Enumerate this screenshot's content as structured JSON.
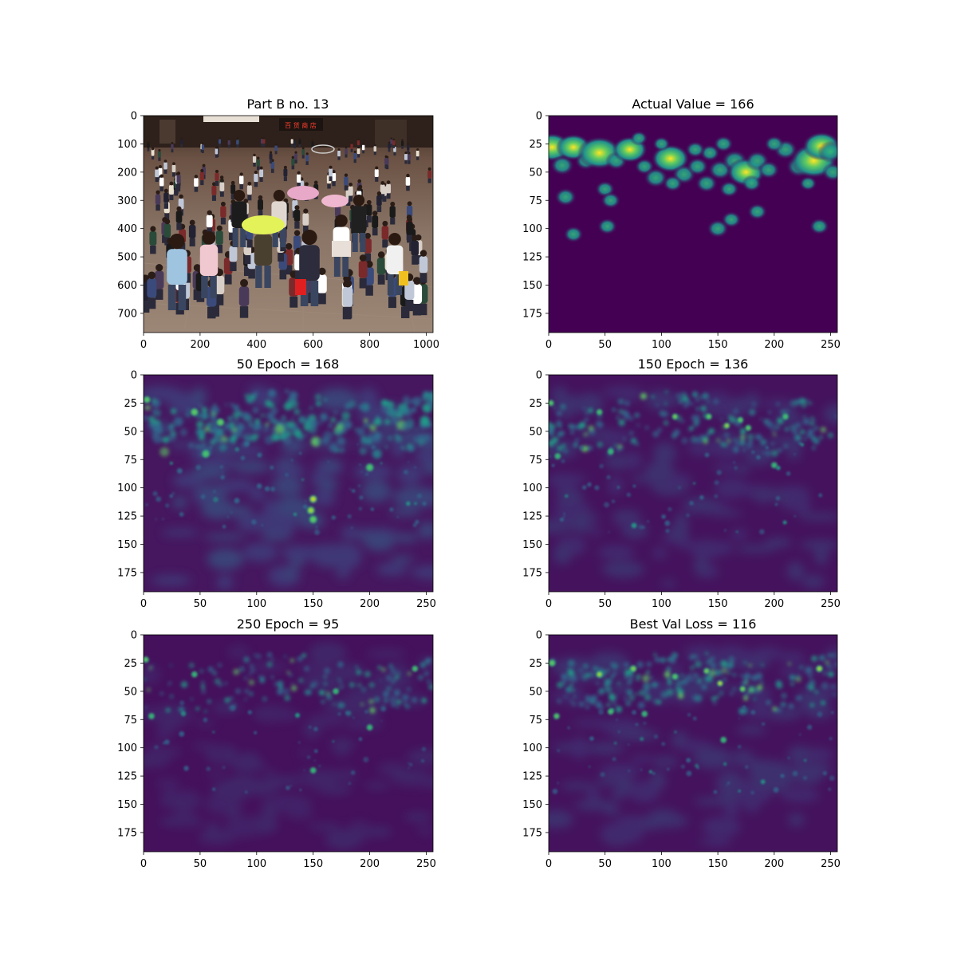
{
  "chart_data": [
    {
      "type": "heatmap",
      "title": "Part B no. 13",
      "content": "photo",
      "xlim": [
        0,
        1024
      ],
      "ylim": [
        768,
        0
      ],
      "xticks": [
        0,
        200,
        400,
        600,
        800,
        1000
      ],
      "yticks": [
        0,
        100,
        200,
        300,
        400,
        500,
        600,
        700
      ],
      "sign_text": "百 货 商 店"
    },
    {
      "type": "heatmap",
      "title": "Actual Value = 166",
      "content": "ground_truth_density",
      "colormap": "viridis",
      "xlim": [
        0,
        256
      ],
      "ylim": [
        192,
        0
      ],
      "xticks": [
        0,
        50,
        100,
        150,
        200,
        250
      ],
      "yticks": [
        0,
        25,
        50,
        75,
        100,
        125,
        150,
        175
      ]
    },
    {
      "type": "heatmap",
      "title": "50 Epoch = 168",
      "content": "predicted_density",
      "colormap": "viridis",
      "xlim": [
        0,
        256
      ],
      "ylim": [
        192,
        0
      ],
      "xticks": [
        0,
        50,
        100,
        150,
        200,
        250
      ],
      "yticks": [
        0,
        25,
        50,
        75,
        100,
        125,
        150,
        175
      ]
    },
    {
      "type": "heatmap",
      "title": "150 Epoch = 136",
      "content": "predicted_density",
      "colormap": "viridis",
      "xlim": [
        0,
        256
      ],
      "ylim": [
        192,
        0
      ],
      "xticks": [
        0,
        50,
        100,
        150,
        200,
        250
      ],
      "yticks": [
        0,
        25,
        50,
        75,
        100,
        125,
        150,
        175
      ]
    },
    {
      "type": "heatmap",
      "title": "250 Epoch = 95",
      "content": "predicted_density",
      "colormap": "viridis",
      "xlim": [
        0,
        256
      ],
      "ylim": [
        192,
        0
      ],
      "xticks": [
        0,
        50,
        100,
        150,
        200,
        250
      ],
      "yticks": [
        0,
        25,
        50,
        75,
        100,
        125,
        150,
        175
      ]
    },
    {
      "type": "heatmap",
      "title": "Best Val Loss = 116",
      "content": "predicted_density",
      "colormap": "viridis",
      "xlim": [
        0,
        256
      ],
      "ylim": [
        192,
        0
      ],
      "xticks": [
        0,
        50,
        100,
        150,
        200,
        250
      ],
      "yticks": [
        0,
        25,
        50,
        75,
        100,
        125,
        150,
        175
      ]
    }
  ],
  "colors": {
    "viridis_low": "#440154",
    "viridis_bg": "#45105e",
    "viridis_mid": "#21918c",
    "viridis_high": "#5ec962",
    "viridis_peak": "#fde725",
    "pavement": "#8a7566",
    "storefront": "#3a2a22"
  }
}
